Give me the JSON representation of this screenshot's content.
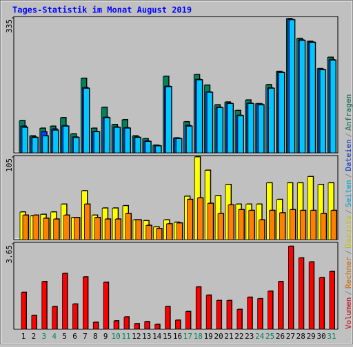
{
  "legend_separator": "/",
  "chart_data": [
    {
      "type": "bar",
      "title": "Tages-Statistik im Monat August 2019",
      "ylim": [
        0,
        335
      ],
      "yticks": [
        335
      ],
      "series": [
        {
          "name": "Anfragen",
          "color": "#00805c",
          "values": [
            80,
            42,
            61,
            66,
            87,
            47,
            185,
            61,
            113,
            70,
            82,
            42,
            35,
            19,
            190,
            37,
            77,
            194,
            168,
            119,
            126,
            105,
            131,
            122,
            169,
            202,
            333,
            284,
            277,
            209,
            237
          ]
        },
        {
          "name": "Dateien",
          "color": "#0040ff",
          "values": [
            66,
            39,
            52,
            59,
            67,
            39,
            162,
            53,
            88,
            64,
            62,
            39,
            29,
            18,
            165,
            36,
            68,
            182,
            151,
            113,
            123,
            93,
            123,
            121,
            161,
            200,
            331,
            280,
            275,
            207,
            231
          ]
        },
        {
          "name": "Seiten",
          "color": "#00c8ff",
          "values": [
            63,
            38,
            42,
            56,
            66,
            38,
            160,
            52,
            87,
            63,
            61,
            38,
            28,
            17,
            164,
            35,
            66,
            181,
            150,
            112,
            122,
            92,
            122,
            119,
            160,
            199,
            330,
            279,
            274,
            206,
            230
          ]
        }
      ]
    },
    {
      "type": "bar",
      "ylim": [
        0,
        105
      ],
      "yticks": [
        105
      ],
      "series": [
        {
          "name": "Besuche",
          "color": "#ffff00",
          "values": [
            35,
            30,
            32,
            35,
            45,
            28,
            62,
            31,
            40,
            40,
            43,
            25,
            24,
            16,
            25,
            22,
            55,
            105,
            88,
            56,
            70,
            45,
            45,
            45,
            72,
            51,
            72,
            72,
            80,
            70,
            72
          ]
        },
        {
          "name": "Rechner",
          "color": "#ff8000",
          "values": [
            31,
            31,
            27,
            26,
            31,
            28,
            45,
            28,
            26,
            26,
            33,
            25,
            18,
            14,
            20,
            21,
            51,
            53,
            46,
            33,
            44,
            38,
            37,
            25,
            37,
            34,
            38,
            37,
            37,
            33,
            37
          ]
        }
      ]
    },
    {
      "type": "bar",
      "ylim": [
        0,
        3.65
      ],
      "yticks": [
        3.65
      ],
      "categories": [
        "1",
        "2",
        "3",
        "4",
        "5",
        "6",
        "7",
        "8",
        "9",
        "10",
        "11",
        "12",
        "13",
        "14",
        "15",
        "16",
        "17",
        "18",
        "19",
        "20",
        "21",
        "22",
        "23",
        "24",
        "25",
        "26",
        "27",
        "28",
        "29",
        "30",
        "31"
      ],
      "category_colors": [
        "#000000",
        "#000000",
        "#00805c",
        "#00805c",
        "#000000",
        "#000000",
        "#000000",
        "#000000",
        "#000000",
        "#00805c",
        "#00805c",
        "#000000",
        "#000000",
        "#000000",
        "#000000",
        "#000000",
        "#00805c",
        "#00805c",
        "#000000",
        "#000000",
        "#000000",
        "#000000",
        "#000000",
        "#00805c",
        "#00805c",
        "#000000",
        "#000000",
        "#000000",
        "#000000",
        "#000000",
        "#00805c"
      ],
      "series": [
        {
          "name": "Volumen",
          "color": "#ff0000",
          "values": [
            1.57,
            0.58,
            2.03,
            0.96,
            2.38,
            1.07,
            2.23,
            0.29,
            2.0,
            0.35,
            0.52,
            0.23,
            0.32,
            0.2,
            0.96,
            0.38,
            0.75,
            1.8,
            1.45,
            1.22,
            1.22,
            0.84,
            1.36,
            1.3,
            1.62,
            2.03,
            3.54,
            3.04,
            2.87,
            2.2,
            2.46
          ]
        }
      ]
    }
  ]
}
